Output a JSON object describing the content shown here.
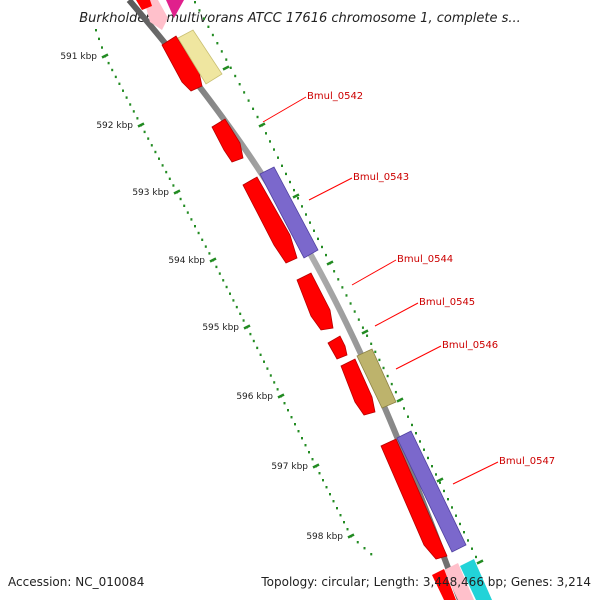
{
  "title": "Burkholderia multivorans ATCC 17616 chromosome 1, complete s...",
  "footer": {
    "accession": "Accession: NC_010084",
    "summary": "Topology: circular; Length: 3,448,466 bp; Genes: 3,214"
  },
  "ticks": [
    {
      "label": "591 kbp",
      "kbp": 591
    },
    {
      "label": "592 kbp",
      "kbp": 592
    },
    {
      "label": "593 kbp",
      "kbp": 593
    },
    {
      "label": "594 kbp",
      "kbp": 594
    },
    {
      "label": "595 kbp",
      "kbp": 595
    },
    {
      "label": "596 kbp",
      "kbp": 596
    },
    {
      "label": "597 kbp",
      "kbp": 597
    },
    {
      "label": "598 kbp",
      "kbp": 598
    }
  ],
  "genes": [
    {
      "label": "Bmul_0542"
    },
    {
      "label": "Bmul_0543"
    },
    {
      "label": "Bmul_0544"
    },
    {
      "label": "Bmul_0545"
    },
    {
      "label": "Bmul_0546"
    },
    {
      "label": "Bmul_0547"
    }
  ],
  "colors": {
    "cds": "#ff0000",
    "cds_dark": "#b80000",
    "cds_light": "#ff8080",
    "purple": "#7b68cc",
    "purple_dark": "#4f40a0",
    "yellow": "#efe6a0",
    "olive": "#bdb36c",
    "pink": "#ffc0cb",
    "magenta": "#e0208c",
    "cyan": "#22d3d8",
    "backbone": "#909090",
    "tick_dots": "#228b22",
    "label_text": "#cc0000",
    "label_line": "#ff0000"
  }
}
